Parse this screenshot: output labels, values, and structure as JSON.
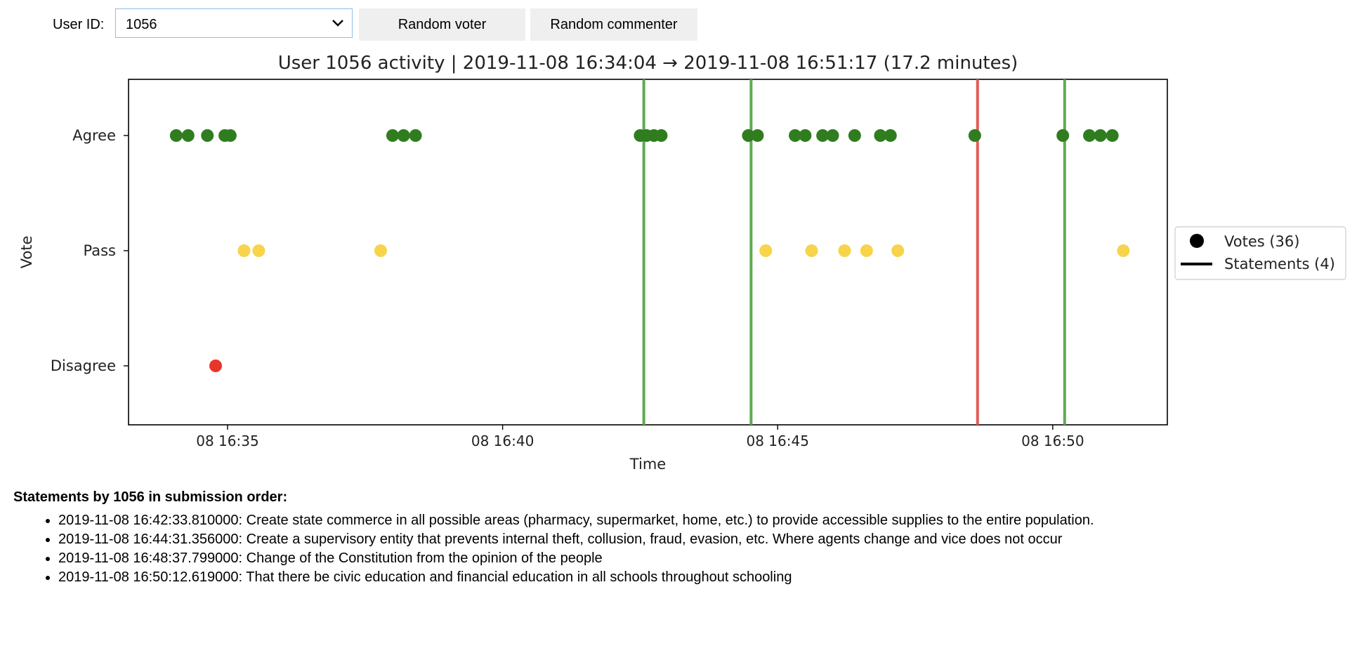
{
  "controls": {
    "user_label": "User ID:",
    "user_value": "1056",
    "random_voter": "Random voter",
    "random_commenter": "Random commenter"
  },
  "chart_data": {
    "type": "scatter",
    "title": "User 1056 activity | 2019-11-08 16:34:04 → 2019-11-08 16:51:17 (17.2 minutes)",
    "xlabel": "Time",
    "ylabel": "Vote",
    "x_unit": "time of day on 2019-11-08 (HH:MM:SS)",
    "xlim": [
      "16:33:12",
      "16:52:05"
    ],
    "x_ticks": [
      {
        "value": "16:35:00",
        "label": "08 16:35"
      },
      {
        "value": "16:40:00",
        "label": "08 16:40"
      },
      {
        "value": "16:45:00",
        "label": "08 16:45"
      },
      {
        "value": "16:50:00",
        "label": "08 16:50"
      }
    ],
    "y_categories": [
      "Agree",
      "Pass",
      "Disagree"
    ],
    "colors": {
      "Agree": "#2f7d1f",
      "Pass": "#f7d44a",
      "Disagree": "#e8352a",
      "statement_agree": "#5faa52",
      "statement_disagree": "#e05c58"
    },
    "votes": [
      {
        "time": "16:34:04",
        "vote": "Agree"
      },
      {
        "time": "16:34:17",
        "vote": "Agree"
      },
      {
        "time": "16:34:38",
        "vote": "Agree"
      },
      {
        "time": "16:34:57",
        "vote": "Agree"
      },
      {
        "time": "16:35:03",
        "vote": "Agree"
      },
      {
        "time": "16:34:47",
        "vote": "Disagree"
      },
      {
        "time": "16:35:18",
        "vote": "Pass"
      },
      {
        "time": "16:35:34",
        "vote": "Pass"
      },
      {
        "time": "16:37:47",
        "vote": "Pass"
      },
      {
        "time": "16:38:00",
        "vote": "Agree"
      },
      {
        "time": "16:38:12",
        "vote": "Agree"
      },
      {
        "time": "16:38:25",
        "vote": "Agree"
      },
      {
        "time": "16:42:30",
        "vote": "Agree"
      },
      {
        "time": "16:42:37",
        "vote": "Agree"
      },
      {
        "time": "16:42:45",
        "vote": "Agree"
      },
      {
        "time": "16:42:53",
        "vote": "Agree"
      },
      {
        "time": "16:44:28",
        "vote": "Agree"
      },
      {
        "time": "16:44:38",
        "vote": "Agree"
      },
      {
        "time": "16:44:47",
        "vote": "Pass"
      },
      {
        "time": "16:45:19",
        "vote": "Agree"
      },
      {
        "time": "16:45:30",
        "vote": "Agree"
      },
      {
        "time": "16:45:37",
        "vote": "Pass"
      },
      {
        "time": "16:45:49",
        "vote": "Agree"
      },
      {
        "time": "16:46:00",
        "vote": "Agree"
      },
      {
        "time": "16:46:13",
        "vote": "Pass"
      },
      {
        "time": "16:46:24",
        "vote": "Agree"
      },
      {
        "time": "16:46:37",
        "vote": "Pass"
      },
      {
        "time": "16:46:52",
        "vote": "Agree"
      },
      {
        "time": "16:47:03",
        "vote": "Agree"
      },
      {
        "time": "16:47:11",
        "vote": "Pass"
      },
      {
        "time": "16:48:35",
        "vote": "Agree"
      },
      {
        "time": "16:50:11",
        "vote": "Agree"
      },
      {
        "time": "16:50:40",
        "vote": "Agree"
      },
      {
        "time": "16:50:52",
        "vote": "Agree"
      },
      {
        "time": "16:51:05",
        "vote": "Agree"
      },
      {
        "time": "16:51:17",
        "vote": "Pass"
      }
    ],
    "statements": [
      {
        "time": "16:42:34",
        "vote": "Agree"
      },
      {
        "time": "16:44:31",
        "vote": "Agree"
      },
      {
        "time": "16:48:38",
        "vote": "Disagree"
      },
      {
        "time": "16:50:13",
        "vote": "Agree"
      }
    ],
    "legend": {
      "position": "right",
      "entries": [
        "Votes (36)",
        "Statements (4)"
      ]
    }
  },
  "statements_section": {
    "heading": "Statements by 1056 in submission order:",
    "items": [
      "2019-11-08 16:42:33.810000: Create state commerce in all possible areas (pharmacy, supermarket, home, etc.) to provide accessible supplies to the entire population.",
      "2019-11-08 16:44:31.356000: Create a supervisory entity that prevents internal theft, collusion, fraud, evasion, etc. Where agents change and vice does not occur",
      "2019-11-08 16:48:37.799000: Change of the Constitution from the opinion of the people",
      "2019-11-08 16:50:12.619000: That there be civic education and financial education in all schools throughout schooling"
    ]
  }
}
